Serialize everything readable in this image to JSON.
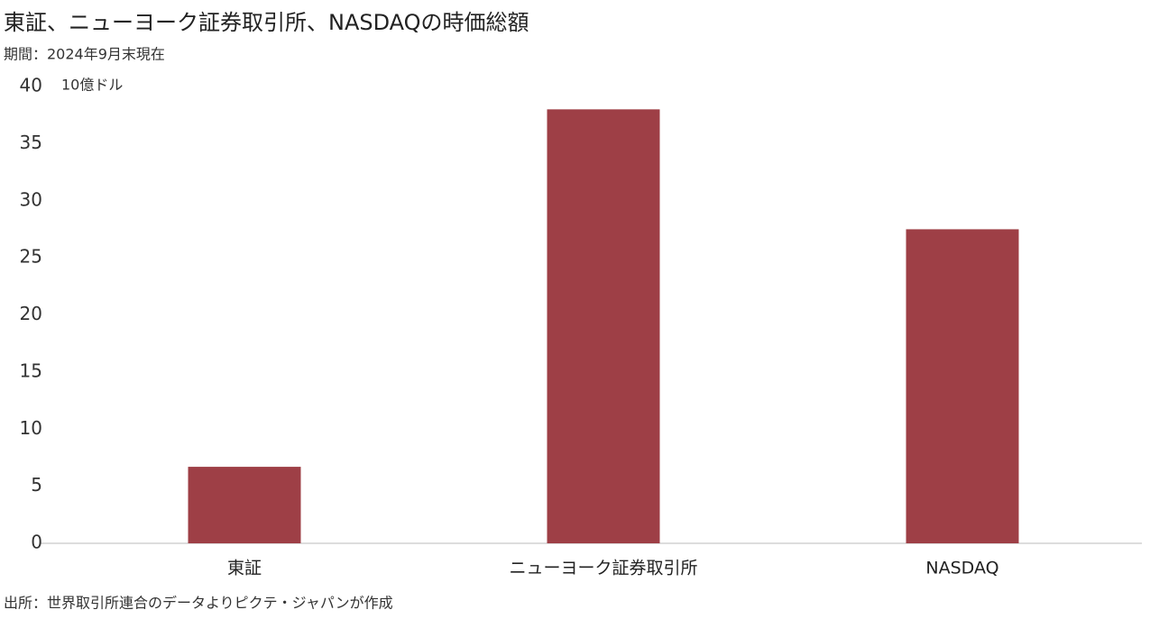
{
  "chart_data": {
    "type": "bar",
    "title": "東証、ニューヨーク証券取引所、NASDAQの時価総額",
    "subtitle": "期間：2024年9月末現在",
    "y_label": "10億ドル",
    "source": "出所：世界取引所連合のデータよりピクテ・ジャパンが作成",
    "categories": [
      "東証",
      "ニューヨーク証券取引所",
      "NASDAQ"
    ],
    "values": [
      6.7,
      38.0,
      27.5
    ],
    "color": "#9e3f46",
    "ylim": [
      0,
      40
    ],
    "yticks": [
      0,
      5,
      10,
      15,
      20,
      25,
      30,
      35,
      40
    ],
    "grid": false
  }
}
